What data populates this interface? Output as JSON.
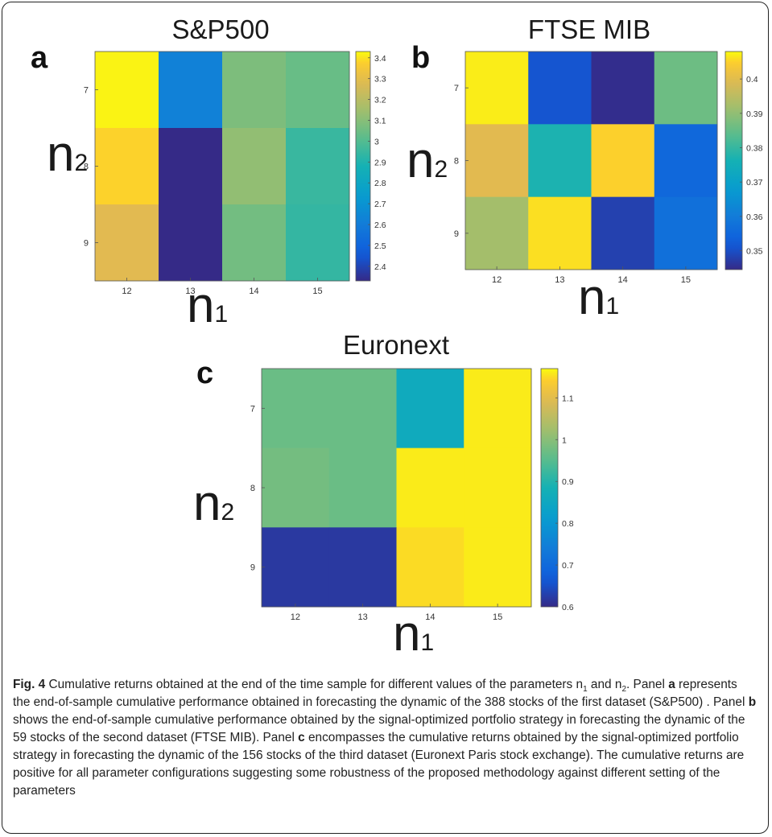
{
  "figure": {
    "axis_x_var": "n",
    "axis_x_sub": "1",
    "axis_y_var": "n",
    "axis_y_sub": "2"
  },
  "chart_data": [
    {
      "type": "heatmap",
      "panel": "a",
      "title": "S&P500",
      "x_categories": [
        "12",
        "13",
        "14",
        "15"
      ],
      "y_categories": [
        "7",
        "8",
        "9"
      ],
      "values": [
        [
          3.42,
          2.62,
          3.08,
          3.04
        ],
        [
          3.38,
          2.33,
          3.12,
          2.95
        ],
        [
          3.29,
          2.33,
          3.06,
          2.94
        ]
      ],
      "colorbar": {
        "min": 2.33,
        "max": 3.43,
        "ticks": [
          "2.4",
          "2.5",
          "2.6",
          "2.7",
          "2.8",
          "2.9",
          "3",
          "3.1",
          "3.2",
          "3.3",
          "3.4"
        ]
      }
    },
    {
      "type": "heatmap",
      "panel": "b",
      "title": "FTSE MIB",
      "x_categories": [
        "12",
        "13",
        "14",
        "15"
      ],
      "y_categories": [
        "7",
        "8",
        "9"
      ],
      "values": [
        [
          0.407,
          0.351,
          0.345,
          0.386
        ],
        [
          0.4,
          0.377,
          0.405,
          0.355
        ],
        [
          0.392,
          0.406,
          0.348,
          0.357
        ]
      ],
      "colorbar": {
        "min": 0.3445,
        "max": 0.408,
        "ticks": [
          "0.35",
          "0.36",
          "0.37",
          "0.38",
          "0.39",
          "0.4"
        ]
      }
    },
    {
      "type": "heatmap",
      "panel": "c",
      "title": "Euronext",
      "x_categories": [
        "12",
        "13",
        "14",
        "15"
      ],
      "y_categories": [
        "7",
        "8",
        "9"
      ],
      "values": [
        [
          0.97,
          0.97,
          0.86,
          1.16
        ],
        [
          0.98,
          0.97,
          1.16,
          1.16
        ],
        [
          0.62,
          0.62,
          1.15,
          1.16
        ]
      ],
      "colorbar": {
        "min": 0.6,
        "max": 1.17,
        "ticks": [
          "0.6",
          "0.7",
          "0.8",
          "0.9",
          "1",
          "1.1"
        ]
      }
    }
  ],
  "caption": {
    "fig_label": "Fig. 4",
    "text_1": " Cumulative returns obtained at the end of the time sample for different values of the parameters n",
    "sub_1": "1",
    "text_2": " and n",
    "sub_2": "2",
    "text_3": ". Panel ",
    "letter_a": "a",
    "text_4": " represents the end-of-sample cumulative performance obtained in forecasting the dynamic of the 388 stocks of the first dataset (S&P500) . Panel ",
    "letter_b": "b",
    "text_5": " shows the end-of-sample cumulative performance obtained by the signal-optimized portfolio strategy in forecasting the dynamic of the 59 stocks of the second dataset (FTSE MIB). Panel ",
    "letter_c": "c",
    "text_6": " encompasses the cumulative returns obtained by the signal-optimized portfolio strategy in forecasting the dynamic of the 156 stocks of the third dataset (Euronext Paris stock exchange). The cumulative returns are positive for all parameter configurations suggesting some robustness of the proposed methodology against different setting of the parameters"
  }
}
